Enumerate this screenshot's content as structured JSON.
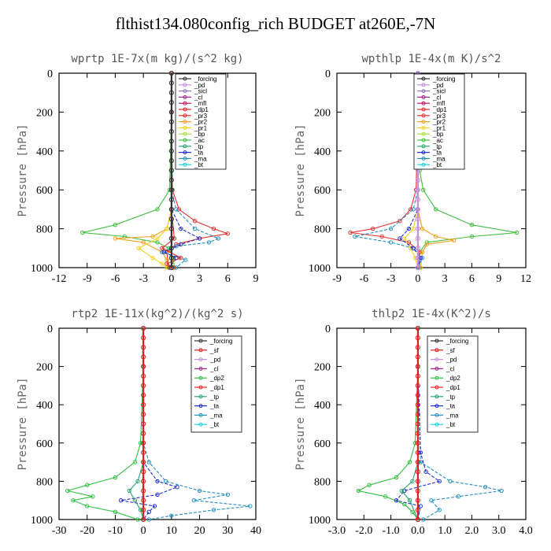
{
  "title": "flthist134.080config_rich  BUDGET at260E,-7N",
  "colors": {
    "_forcing": "#333333",
    "_pd": "#c890d8",
    "_sicl": "#9a70c0",
    "_cl": "#a02888",
    "_mfl": "#c01868",
    "_dp1": "#e02828",
    "_pr3": "#e83030",
    "_pr2": "#f0a020",
    "_pr1": "#f0d020",
    "_bp": "#a8e040",
    "_ac": "#40c040",
    "_tp": "#2aa870",
    "_ta": "#2030d0",
    "_ma": "#2890c0",
    "_bt": "#20d0e0",
    "_sf": "#e02020",
    "_dp2": "#30c040",
    "red_series": "#d02020"
  },
  "chart_data": [
    {
      "type": "line",
      "title": "wprtp   1E-7x(m kg)/(s^2 kg)",
      "ylabel": "Pressure [hPa]",
      "xlim": [
        -12,
        9
      ],
      "xticks": [
        "-12",
        "-9",
        "-6",
        "-3",
        "0",
        "3",
        "6",
        "9"
      ],
      "ylim": [
        1000,
        0
      ],
      "yticks": [
        "0",
        "200",
        "400",
        "600",
        "800",
        "1000"
      ],
      "legend": [
        "_forcing",
        "_pd",
        "_sicl",
        "_cl",
        "_mfl",
        "_dp1",
        "_pr3",
        "_pr2",
        "_pr1",
        "_bp",
        "_ac",
        "_tp",
        "_ta",
        "_ma",
        "_bt"
      ],
      "series": [
        {
          "name": "_ac",
          "y": [
            0,
            200,
            600,
            700,
            780,
            820,
            840,
            870,
            900,
            950,
            1000
          ],
          "x": [
            0,
            0,
            -0.2,
            -1.5,
            -6,
            -9.5,
            -5,
            -1.5,
            -0.3,
            0.2,
            0.3
          ]
        },
        {
          "name": "_pr3",
          "y": [
            0,
            200,
            600,
            700,
            760,
            800,
            825,
            850,
            880,
            920,
            1000
          ],
          "x": [
            0,
            0,
            0.1,
            0.8,
            2.5,
            4.5,
            6,
            3,
            0.5,
            -0.5,
            -0.3
          ]
        },
        {
          "name": "_pr2",
          "y": [
            0,
            200,
            700,
            800,
            840,
            850,
            870,
            920,
            960,
            1000
          ],
          "x": [
            0,
            0,
            0,
            -0.5,
            -2,
            -6,
            -3,
            -1,
            -0.5,
            -0.3
          ]
        },
        {
          "name": "_pr1",
          "y": [
            0,
            200,
            700,
            800,
            850,
            900,
            950,
            980,
            1000
          ],
          "x": [
            0,
            0,
            0,
            -0.5,
            -1.5,
            -3.5,
            -2,
            -1,
            -0.5
          ]
        },
        {
          "name": "_ma",
          "y": [
            0,
            200,
            600,
            700,
            800,
            850,
            870,
            890,
            920,
            960,
            1000
          ],
          "x": [
            0,
            0,
            0,
            0.5,
            2.5,
            5,
            4,
            0.5,
            -1,
            1.5,
            0.5
          ]
        },
        {
          "name": "_ta",
          "y": [
            0,
            200,
            700,
            800,
            850,
            880,
            920,
            950,
            1000
          ],
          "x": [
            0,
            0,
            0,
            1,
            3,
            1,
            -0.8,
            0.5,
            -0.2
          ]
        },
        {
          "name": "_dp1",
          "y": [
            0,
            200,
            700,
            850,
            900,
            950,
            980,
            1000
          ],
          "x": [
            0,
            0,
            0,
            0.3,
            -1,
            1,
            -0.5,
            0.2
          ]
        },
        {
          "name": "_forcing",
          "y": [
            0,
            50,
            100,
            150,
            200,
            250,
            300,
            350,
            400,
            450,
            500,
            550,
            600,
            650,
            700,
            750,
            800,
            850,
            900,
            950,
            1000
          ],
          "x": [
            0,
            0,
            0,
            0,
            0,
            0,
            0,
            0,
            0,
            0,
            0,
            0,
            0,
            0,
            0,
            0,
            0,
            0,
            0,
            0,
            0
          ]
        }
      ]
    },
    {
      "type": "line",
      "title": "wpthlp   1E-4x(m K)/s^2",
      "ylabel": "Pressure [hPa]",
      "xlim": [
        -9,
        12
      ],
      "xticks": [
        "-9",
        "-6",
        "-3",
        "0",
        "3",
        "6",
        "9",
        "12"
      ],
      "ylim": [
        1000,
        0
      ],
      "yticks": [
        "0",
        "200",
        "400",
        "600",
        "800",
        "1000"
      ],
      "legend": [
        "_forcing",
        "_pd",
        "_sicl",
        "_cl",
        "_mfl",
        "_dp1",
        "_pr3",
        "_pr2",
        "_pr1",
        "_bp",
        "_ac",
        "_tp",
        "_ta",
        "_ma",
        "_bt"
      ],
      "series": [
        {
          "name": "_ac",
          "y": [
            0,
            200,
            500,
            600,
            700,
            780,
            820,
            840,
            870,
            920,
            1000
          ],
          "x": [
            0,
            0,
            0.2,
            0.6,
            2,
            6,
            11,
            6,
            1,
            0.2,
            0.2
          ]
        },
        {
          "name": "_pr3",
          "y": [
            0,
            200,
            600,
            700,
            760,
            800,
            820,
            840,
            870,
            920,
            1000
          ],
          "x": [
            0,
            0,
            -0.2,
            -0.8,
            -2,
            -5,
            -7.5,
            -4,
            -1,
            0.2,
            0
          ]
        },
        {
          "name": "_pr2",
          "y": [
            0,
            200,
            700,
            800,
            840,
            860,
            880,
            920,
            1000
          ],
          "x": [
            0,
            0,
            0,
            0.5,
            2,
            4,
            1,
            0.5,
            0.3
          ]
        },
        {
          "name": "_pr1",
          "y": [
            0,
            200,
            700,
            800,
            850,
            900,
            950,
            1000
          ],
          "x": [
            0,
            0,
            0,
            -0.5,
            -1.5,
            -0.8,
            -0.3,
            0
          ]
        },
        {
          "name": "_ma",
          "y": [
            0,
            200,
            600,
            700,
            800,
            840,
            870,
            900,
            950,
            1000
          ],
          "x": [
            0,
            0,
            0,
            -0.5,
            -3,
            -7,
            -3,
            -0.5,
            0.5,
            0
          ]
        },
        {
          "name": "_ta",
          "y": [
            0,
            200,
            700,
            800,
            850,
            900,
            950,
            1000
          ],
          "x": [
            0,
            0,
            0,
            -1,
            -2,
            -0.5,
            0.3,
            0
          ]
        },
        {
          "name": "_pd",
          "y": [
            0,
            50,
            100,
            150,
            200,
            250,
            300,
            350,
            400,
            450,
            500,
            550,
            600,
            650,
            700,
            750,
            800,
            850,
            900,
            950,
            1000
          ],
          "x": [
            0,
            0,
            0,
            0,
            0,
            0,
            0,
            0,
            0,
            0,
            0,
            0,
            0,
            0,
            0,
            0,
            0,
            0,
            0,
            0,
            0
          ]
        }
      ]
    },
    {
      "type": "line",
      "title": "rtp2   1E-11x(kg^2)/(kg^2 s)",
      "ylabel": "Pressure [hPa]",
      "xlim": [
        -30,
        40
      ],
      "xticks": [
        "-30",
        "-20",
        "-10",
        "0",
        "10",
        "20",
        "30",
        "40"
      ],
      "ylim": [
        1000,
        0
      ],
      "yticks": [
        "0",
        "200",
        "400",
        "600",
        "800",
        "1000"
      ],
      "legend": [
        "_forcing",
        "_sf",
        "_pd",
        "_cl",
        "_dp2",
        "_dp1",
        "_tp",
        "_ta",
        "_ma",
        "_bt"
      ],
      "series": [
        {
          "name": "_dp2",
          "y": [
            0,
            200,
            600,
            700,
            780,
            820,
            850,
            880,
            900,
            930,
            960,
            1000
          ],
          "x": [
            0,
            0,
            -1,
            -3,
            -10,
            -20,
            -27,
            -18,
            -25,
            -20,
            -10,
            -2
          ]
        },
        {
          "name": "_ma",
          "y": [
            0,
            200,
            600,
            700,
            800,
            850,
            870,
            900,
            930,
            950,
            980,
            1000
          ],
          "x": [
            0,
            0,
            0,
            2,
            8,
            20,
            30,
            18,
            38,
            25,
            10,
            2
          ]
        },
        {
          "name": "_ta",
          "y": [
            0,
            200,
            700,
            800,
            830,
            870,
            900,
            930,
            960,
            1000
          ],
          "x": [
            0,
            0,
            0,
            5,
            12,
            5,
            -8,
            4,
            2,
            0
          ]
        },
        {
          "name": "_tp",
          "y": [
            0,
            200,
            700,
            800,
            850,
            900,
            950,
            1000
          ],
          "x": [
            0,
            0,
            0,
            -2,
            -5,
            -3,
            -1,
            0
          ]
        },
        {
          "name": "_sf",
          "y": [
            0,
            50,
            100,
            150,
            200,
            250,
            300,
            350,
            400,
            450,
            500,
            550,
            600,
            650,
            700,
            750,
            800,
            850,
            900,
            950,
            1000
          ],
          "x": [
            0,
            0,
            0,
            0,
            0,
            0,
            0,
            0,
            0,
            0,
            0,
            0,
            0,
            0,
            0,
            0,
            0,
            0,
            0,
            0,
            0
          ]
        }
      ]
    },
    {
      "type": "line",
      "title": "thlp2   1E-4x(K^2)/s",
      "ylabel": "Pressure [hPa]",
      "xlim": [
        -3.0,
        4.0
      ],
      "xticks": [
        "-3.0",
        "-2.0",
        "-1.0",
        "0.0",
        "1.0",
        "2.0",
        "3.0",
        "4.0"
      ],
      "ylim": [
        1000,
        0
      ],
      "yticks": [
        "0",
        "200",
        "400",
        "600",
        "800",
        "1000"
      ],
      "legend": [
        "_forcing",
        "_sf",
        "_pd",
        "_cl",
        "_dp2",
        "_dp1",
        "_tp",
        "_ta",
        "_ma",
        "_bt"
      ],
      "series": [
        {
          "name": "_dp2",
          "y": [
            0,
            200,
            600,
            700,
            780,
            820,
            850,
            880,
            920,
            960,
            1000
          ],
          "x": [
            0,
            0,
            -0.1,
            -0.3,
            -0.8,
            -1.8,
            -2.2,
            -1.2,
            -0.5,
            -0.2,
            0
          ]
        },
        {
          "name": "_ma",
          "y": [
            0,
            200,
            700,
            800,
            830,
            850,
            880,
            900,
            950,
            1000
          ],
          "x": [
            0,
            0,
            0.1,
            1.2,
            2.5,
            3.1,
            1.5,
            0.5,
            0.8,
            0.2
          ]
        },
        {
          "name": "_ta",
          "y": [
            0,
            200,
            650,
            750,
            800,
            850,
            900,
            930,
            1000
          ],
          "x": [
            0,
            0,
            0.1,
            0.3,
            0.8,
            -0.5,
            -0.8,
            0.1,
            0
          ]
        },
        {
          "name": "_tp",
          "y": [
            0,
            200,
            700,
            800,
            850,
            900,
            1000
          ],
          "x": [
            0,
            0,
            0,
            -0.2,
            -0.6,
            -0.3,
            0
          ]
        },
        {
          "name": "_sf",
          "y": [
            0,
            50,
            100,
            150,
            200,
            250,
            300,
            350,
            400,
            450,
            500,
            550,
            600,
            650,
            700,
            750,
            800,
            850,
            900,
            950,
            1000
          ],
          "x": [
            0,
            0,
            0,
            0,
            0,
            0,
            0,
            0,
            0,
            0,
            0,
            0,
            0,
            0,
            0,
            0,
            0,
            0,
            0,
            0,
            0
          ]
        }
      ]
    }
  ]
}
